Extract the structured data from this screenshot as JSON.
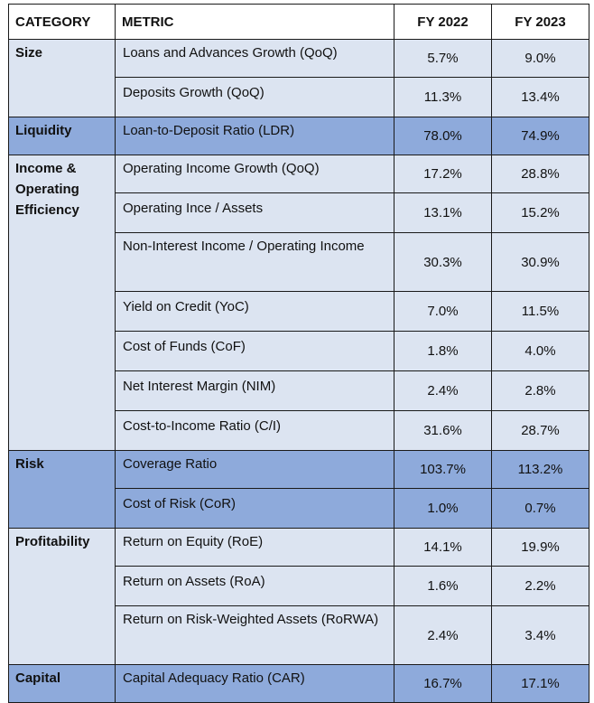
{
  "header": {
    "category": "CATEGORY",
    "metric": "METRIC",
    "fy2022": "FY 2022",
    "fy2023": "FY 2023"
  },
  "groups": [
    {
      "category": "Size",
      "shade": "light",
      "rows": [
        {
          "metric": "Loans and Advances Growth (QoQ)",
          "fy2022": "5.7%",
          "fy2023": "9.0%"
        },
        {
          "metric": "Deposits Growth (QoQ)",
          "fy2022": "11.3%",
          "fy2023": "13.4%"
        }
      ]
    },
    {
      "category": "Liquidity",
      "shade": "dark",
      "rows": [
        {
          "metric": "Loan-to-Deposit Ratio (LDR)",
          "fy2022": "78.0%",
          "fy2023": "74.9%"
        }
      ]
    },
    {
      "category": "Income & Operating Efficiency",
      "shade": "light",
      "rows": [
        {
          "metric": "Operating Income Growth (QoQ)",
          "fy2022": "17.2%",
          "fy2023": "28.8%"
        },
        {
          "metric": "Operating Ince / Assets",
          "fy2022": "13.1%",
          "fy2023": "15.2%"
        },
        {
          "metric": "Non-Interest Income / Operating Income",
          "fy2022": "30.3%",
          "fy2023": "30.9%",
          "tall": true
        },
        {
          "metric": "Yield on Credit (YoC)",
          "fy2022": "7.0%",
          "fy2023": "11.5%"
        },
        {
          "metric": "Cost of Funds (CoF)",
          "fy2022": "1.8%",
          "fy2023": "4.0%"
        },
        {
          "metric": "Net Interest Margin (NIM)",
          "fy2022": "2.4%",
          "fy2023": "2.8%"
        },
        {
          "metric": "Cost-to-Income Ratio (C/I)",
          "fy2022": "31.6%",
          "fy2023": "28.7%"
        }
      ]
    },
    {
      "category": "Risk",
      "shade": "dark",
      "rows": [
        {
          "metric": "Coverage Ratio",
          "fy2022": "103.7%",
          "fy2023": "113.2%"
        },
        {
          "metric": "Cost of Risk (CoR)",
          "fy2022": "1.0%",
          "fy2023": "0.7%"
        }
      ]
    },
    {
      "category": "Profitability",
      "shade": "light",
      "rows": [
        {
          "metric": "Return on Equity (RoE)",
          "fy2022": "14.1%",
          "fy2023": "19.9%"
        },
        {
          "metric": "Return on Assets (RoA)",
          "fy2022": "1.6%",
          "fy2023": "2.2%"
        },
        {
          "metric": "Return on Risk-Weighted Assets (RoRWA)",
          "fy2022": "2.4%",
          "fy2023": "3.4%",
          "tall": true
        }
      ]
    },
    {
      "category": "Capital",
      "shade": "dark",
      "rows": [
        {
          "metric": "Capital Adequacy Ratio (CAR)",
          "fy2022": "16.7%",
          "fy2023": "17.1%"
        }
      ]
    }
  ]
}
